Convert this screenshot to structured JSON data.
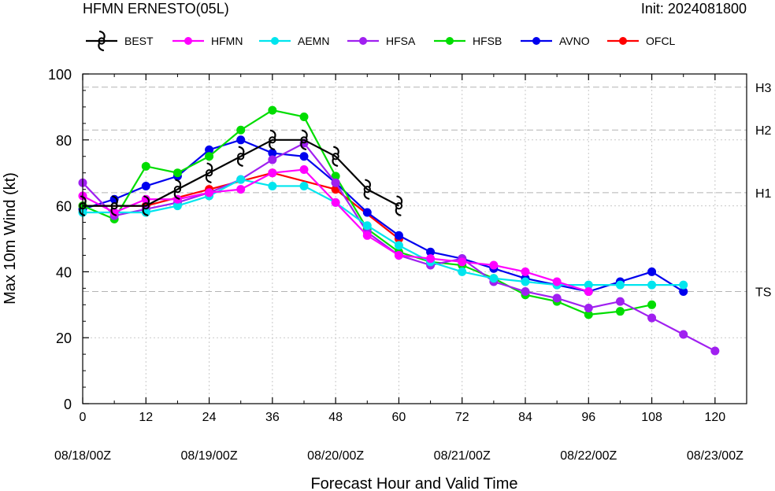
{
  "chart_data": {
    "type": "line",
    "title_left": "HFMN ERNESTO(05L)",
    "title_right": "Init: 2024081800",
    "xlabel": "Forecast Hour and Valid Time",
    "ylabel": "Max 10m Wind (kt)",
    "xlim": [
      0,
      126
    ],
    "ylim": [
      0,
      100
    ],
    "x_ticks": [
      0,
      12,
      24,
      36,
      48,
      60,
      72,
      84,
      96,
      108,
      120
    ],
    "x_tick_labels": [
      "0",
      "12",
      "24",
      "36",
      "48",
      "60",
      "72",
      "84",
      "96",
      "108",
      "120"
    ],
    "date_ticks": [
      {
        "x": 0,
        "label": "08/18/00Z"
      },
      {
        "x": 24,
        "label": "08/19/00Z"
      },
      {
        "x": 48,
        "label": "08/20/00Z"
      },
      {
        "x": 72,
        "label": "08/21/00Z"
      },
      {
        "x": 96,
        "label": "08/22/00Z"
      },
      {
        "x": 120,
        "label": "08/23/00Z"
      }
    ],
    "y_ticks": [
      0,
      20,
      40,
      60,
      80,
      100
    ],
    "y_tick_labels": [
      "0",
      "20",
      "40",
      "60",
      "80",
      "100"
    ],
    "thresholds": [
      {
        "value": 34,
        "label": "TS"
      },
      {
        "value": 64,
        "label": "H1"
      },
      {
        "value": 83,
        "label": "H2"
      },
      {
        "value": 96,
        "label": "H3"
      }
    ],
    "grid": true,
    "legend_position": "top",
    "series": [
      {
        "name": "BEST",
        "color": "#000000",
        "marker": "hurricane-symbol",
        "x": [
          0,
          6,
          12,
          18,
          24,
          30,
          36,
          42,
          48,
          54,
          60
        ],
        "y": [
          60,
          60,
          60,
          65,
          70,
          75,
          80,
          80,
          75,
          65,
          60
        ]
      },
      {
        "name": "HFMN",
        "color": "#ff00ff",
        "marker": "circle",
        "x": [
          0,
          6,
          12,
          18,
          24,
          30,
          36,
          42,
          48,
          54,
          60,
          66,
          72,
          78,
          84,
          90,
          96
        ],
        "y": [
          63,
          58,
          62,
          62,
          64,
          65,
          70,
          71,
          61,
          51,
          45,
          44,
          43,
          42,
          40,
          37,
          34
        ]
      },
      {
        "name": "AEMN",
        "color": "#00e5ee",
        "marker": "circle",
        "x": [
          0,
          12,
          18,
          24,
          30,
          36,
          42,
          48,
          54,
          60,
          66,
          72,
          78,
          84,
          90,
          96,
          102,
          108,
          114
        ],
        "y": [
          58,
          58,
          60,
          63,
          68,
          66,
          66,
          61,
          54,
          48,
          43,
          40,
          38,
          37,
          36,
          36,
          36,
          36,
          36
        ]
      },
      {
        "name": "HFSA",
        "color": "#a020f0",
        "marker": "circle",
        "x": [
          0,
          6,
          12,
          18,
          24,
          30,
          36,
          42,
          48,
          54,
          60,
          66,
          72,
          78,
          84,
          90,
          96,
          102,
          108,
          114,
          120
        ],
        "y": [
          67,
          57,
          59,
          61,
          64,
          68,
          74,
          79,
          67,
          52,
          45,
          42,
          44,
          37,
          34,
          32,
          29,
          31,
          26,
          21,
          16
        ]
      },
      {
        "name": "HFSB",
        "color": "#00dd00",
        "marker": "circle",
        "x": [
          0,
          6,
          12,
          18,
          24,
          30,
          36,
          42,
          48,
          54,
          60,
          66,
          72,
          78,
          84,
          90,
          96,
          102,
          108
        ],
        "y": [
          60,
          56,
          72,
          70,
          75,
          83,
          89,
          87,
          69,
          53,
          46,
          43,
          42,
          38,
          33,
          31,
          27,
          28,
          30
        ]
      },
      {
        "name": "AVNO",
        "color": "#0000ee",
        "marker": "circle",
        "x": [
          0,
          6,
          12,
          18,
          24,
          30,
          36,
          42,
          48,
          54,
          60,
          66,
          72,
          78,
          84,
          90,
          96,
          102,
          108,
          114
        ],
        "y": [
          59,
          62,
          66,
          69,
          77,
          80,
          76,
          75,
          67,
          58,
          51,
          46,
          44,
          41,
          38,
          36,
          34,
          37,
          40,
          34
        ]
      },
      {
        "name": "OFCL",
        "color": "#ff0000",
        "marker": "circle",
        "x": [
          0,
          12,
          24,
          36,
          48,
          60
        ],
        "y": [
          60,
          60,
          65,
          70,
          65,
          50
        ]
      }
    ]
  }
}
